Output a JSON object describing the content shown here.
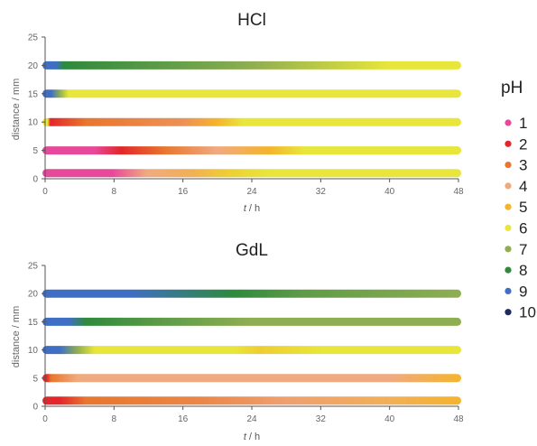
{
  "chart_data": [
    {
      "type": "line",
      "title": "HCl",
      "xlabel_italic": "t",
      "xlabel_unit": " / h",
      "ylabel": "distance / mm",
      "xlim": [
        0,
        48
      ],
      "ylim": [
        0,
        25
      ],
      "xticks": [
        0,
        8,
        16,
        24,
        32,
        40,
        48
      ],
      "yticks": [
        0,
        5,
        10,
        15,
        20,
        25
      ],
      "series": [
        {
          "distance": 20,
          "stops": [
            [
              0,
              9
            ],
            [
              1.5,
              9
            ],
            [
              2.5,
              8
            ],
            [
              14,
              7.5
            ],
            [
              24,
              7
            ],
            [
              32,
              6.5
            ],
            [
              40,
              6
            ],
            [
              48,
              6
            ]
          ]
        },
        {
          "distance": 15,
          "stops": [
            [
              0,
              9
            ],
            [
              1,
              9
            ],
            [
              2,
              7
            ],
            [
              3,
              6
            ],
            [
              48,
              6
            ]
          ]
        },
        {
          "distance": 10,
          "stops": [
            [
              0,
              6
            ],
            [
              0.6,
              6
            ],
            [
              0.9,
              2
            ],
            [
              5,
              3
            ],
            [
              16,
              3.5
            ],
            [
              20,
              5
            ],
            [
              23,
              6
            ],
            [
              48,
              6
            ]
          ]
        },
        {
          "distance": 5,
          "stops": [
            [
              0,
              1
            ],
            [
              6,
              1
            ],
            [
              9,
              2
            ],
            [
              14,
              3
            ],
            [
              20,
              4
            ],
            [
              26,
              5
            ],
            [
              30,
              6
            ],
            [
              48,
              6
            ]
          ]
        },
        {
          "distance": 1,
          "stops": [
            [
              0,
              1
            ],
            [
              8,
              1
            ],
            [
              12,
              4
            ],
            [
              17,
              4.5
            ],
            [
              21,
              5.5
            ],
            [
              26,
              6
            ],
            [
              48,
              6
            ]
          ]
        }
      ]
    },
    {
      "type": "line",
      "title": "GdL",
      "xlabel_italic": "t",
      "xlabel_unit": " / h",
      "ylabel": "distance / mm",
      "xlim": [
        0,
        48
      ],
      "ylim": [
        0,
        25
      ],
      "xticks": [
        0,
        8,
        16,
        24,
        32,
        40,
        48
      ],
      "yticks": [
        0,
        5,
        10,
        15,
        20,
        25
      ],
      "series": [
        {
          "distance": 20,
          "stops": [
            [
              0,
              9
            ],
            [
              10,
              9
            ],
            [
              22,
              8
            ],
            [
              30,
              7.5
            ],
            [
              48,
              7
            ]
          ]
        },
        {
          "distance": 15,
          "stops": [
            [
              0,
              9
            ],
            [
              3,
              9
            ],
            [
              5,
              8
            ],
            [
              14,
              7.5
            ],
            [
              24,
              7
            ],
            [
              48,
              7
            ]
          ]
        },
        {
          "distance": 10,
          "stops": [
            [
              0,
              9
            ],
            [
              2,
              9
            ],
            [
              4,
              7
            ],
            [
              6,
              6
            ],
            [
              22,
              6
            ],
            [
              25,
              5.5
            ],
            [
              32,
              6
            ],
            [
              48,
              6
            ]
          ]
        },
        {
          "distance": 5,
          "stops": [
            [
              0,
              2
            ],
            [
              0.5,
              2
            ],
            [
              1,
              3
            ],
            [
              4,
              4
            ],
            [
              40,
              4
            ],
            [
              48,
              5
            ]
          ]
        },
        {
          "distance": 1,
          "stops": [
            [
              0,
              2
            ],
            [
              2,
              2
            ],
            [
              5,
              3
            ],
            [
              18,
              3.3
            ],
            [
              28,
              3.8
            ],
            [
              40,
              4.5
            ],
            [
              48,
              5
            ]
          ]
        }
      ]
    }
  ],
  "legend": {
    "title": "pH",
    "placement": "right",
    "entries": [
      {
        "label": "1",
        "color": "#e8489a"
      },
      {
        "label": "2",
        "color": "#e3262a"
      },
      {
        "label": "3",
        "color": "#e8762e"
      },
      {
        "label": "4",
        "color": "#f0aa80"
      },
      {
        "label": "5",
        "color": "#f4b42c"
      },
      {
        "label": "6",
        "color": "#e8e63a"
      },
      {
        "label": "7",
        "color": "#8fae52"
      },
      {
        "label": "8",
        "color": "#2e8a3c"
      },
      {
        "label": "9",
        "color": "#3f6fc4"
      },
      {
        "label": "10",
        "color": "#1c2a5e"
      }
    ]
  },
  "style": {
    "axis_color": "#555555",
    "tick_color": "#666666"
  }
}
